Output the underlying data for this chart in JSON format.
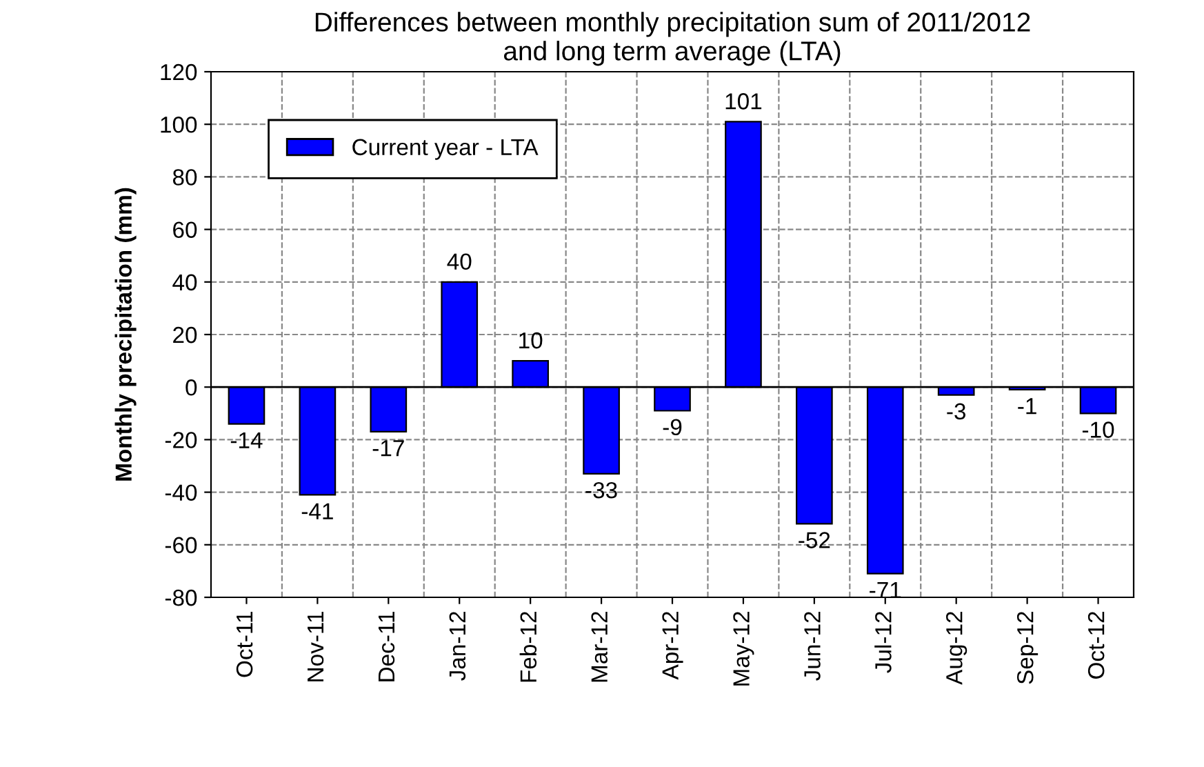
{
  "chart_data": {
    "type": "bar",
    "title": "Differences between monthly precipitation sum of 2011/2012\nand long term average (LTA)",
    "ylabel": "Monthly precipitation (mm)",
    "categories": [
      "Oct-11",
      "Nov-11",
      "Dec-11",
      "Jan-12",
      "Feb-12",
      "Mar-12",
      "Apr-12",
      "May-12",
      "Jun-12",
      "Jul-12",
      "Aug-12",
      "Sep-12",
      "Oct-12"
    ],
    "series": [
      {
        "name": "Current year - LTA",
        "color": "#0000ff",
        "values": [
          -14,
          -41,
          -17,
          40,
          10,
          -33,
          -9,
          101,
          -52,
          -71,
          -3,
          -1,
          -10
        ]
      }
    ],
    "ylim": [
      -80,
      120
    ],
    "yticks": [
      -80,
      -60,
      -40,
      -20,
      0,
      20,
      40,
      60,
      80,
      100,
      120
    ],
    "grid": true,
    "legend": "top left",
    "data_labels": true
  }
}
